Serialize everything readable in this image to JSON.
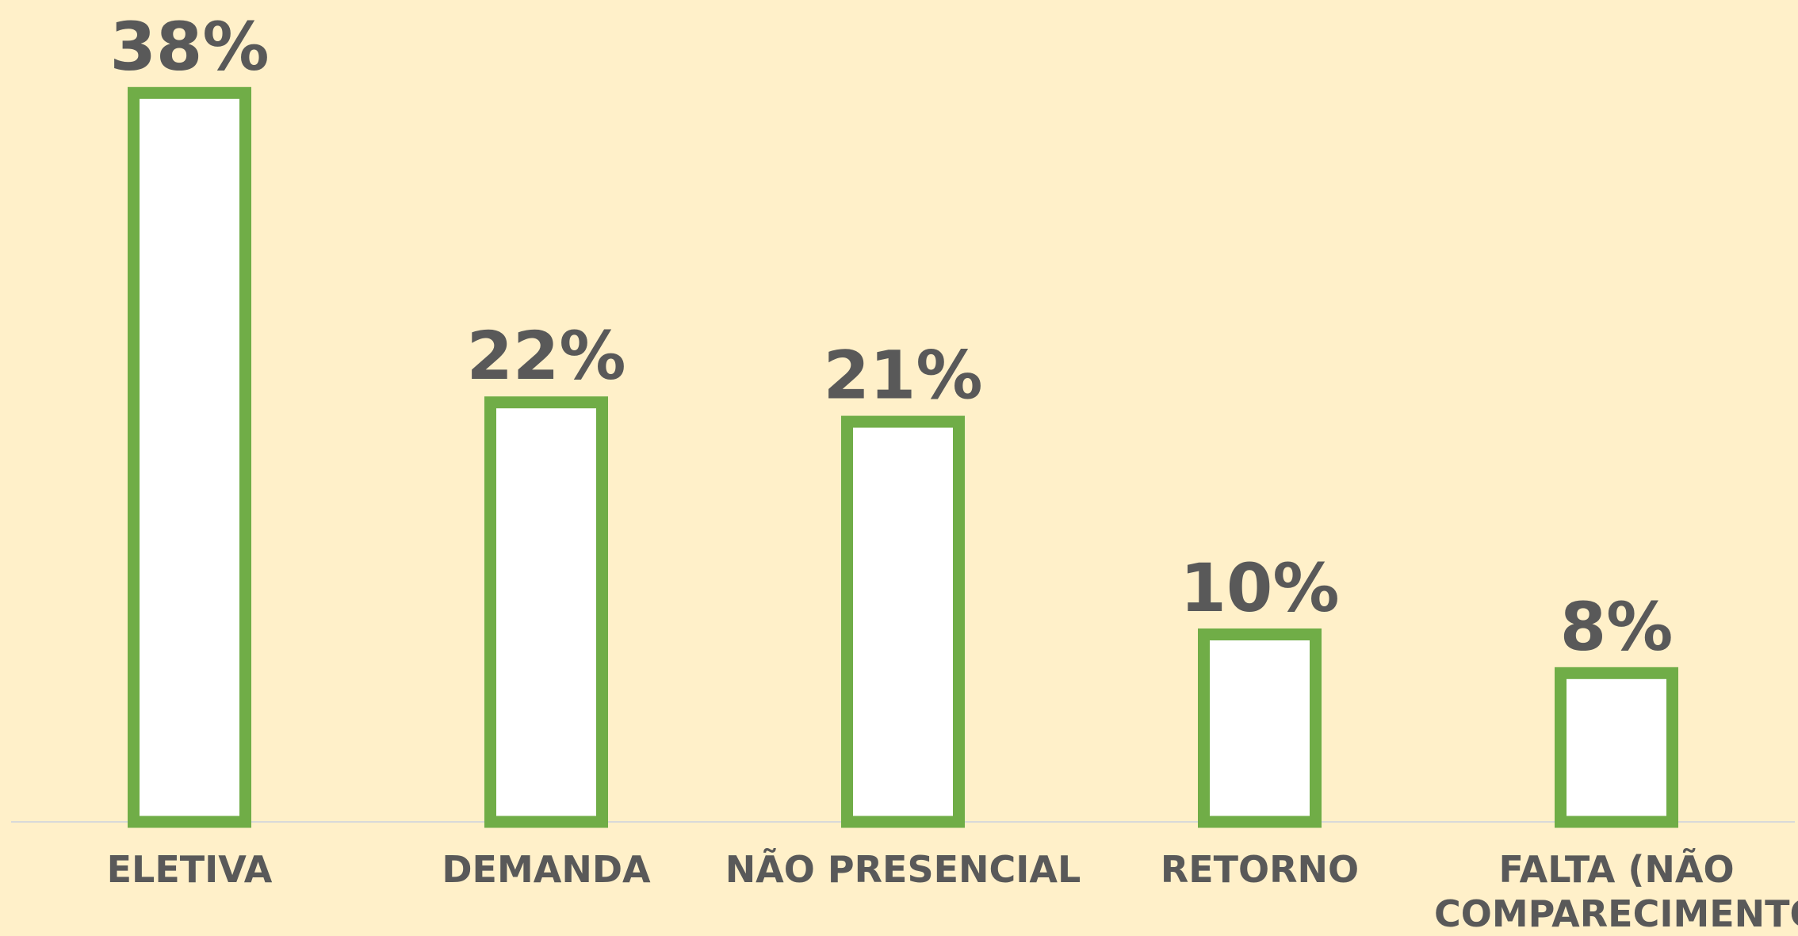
{
  "chart_data": {
    "type": "bar",
    "categories": [
      "ELETIVA",
      "DEMANDA",
      "NÃO PRESENCIAL",
      "RETORNO",
      "FALTA (NÃO COMPARECIMENTO)"
    ],
    "values": [
      38,
      22,
      21,
      10,
      8
    ],
    "value_labels": [
      "38%",
      "22%",
      "21%",
      "10%",
      "8%"
    ],
    "color": "#70ad47",
    "ylim": [
      0,
      40
    ]
  }
}
